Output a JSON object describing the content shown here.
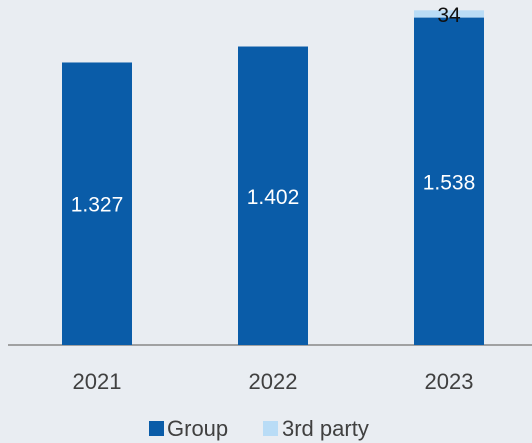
{
  "chart_data": {
    "type": "bar",
    "stacked": true,
    "categories": [
      "2021",
      "2022",
      "2023"
    ],
    "series": [
      {
        "name": "Group",
        "values": [
          1327,
          1402,
          1538
        ],
        "labels": [
          "1.327",
          "1.402",
          "1.538"
        ],
        "color": "#0a5ca8"
      },
      {
        "name": "3rd party",
        "values": [
          0,
          0,
          34
        ],
        "labels": [
          "",
          "",
          "34"
        ],
        "color": "#b9dcf6"
      }
    ],
    "axis_color": "#888888",
    "text_color": "#404040",
    "label_color_on_dark": "#ffffff",
    "label_color_on_light": "#111111",
    "legend_position": "bottom",
    "y_axis_visible": false,
    "grid": false
  }
}
